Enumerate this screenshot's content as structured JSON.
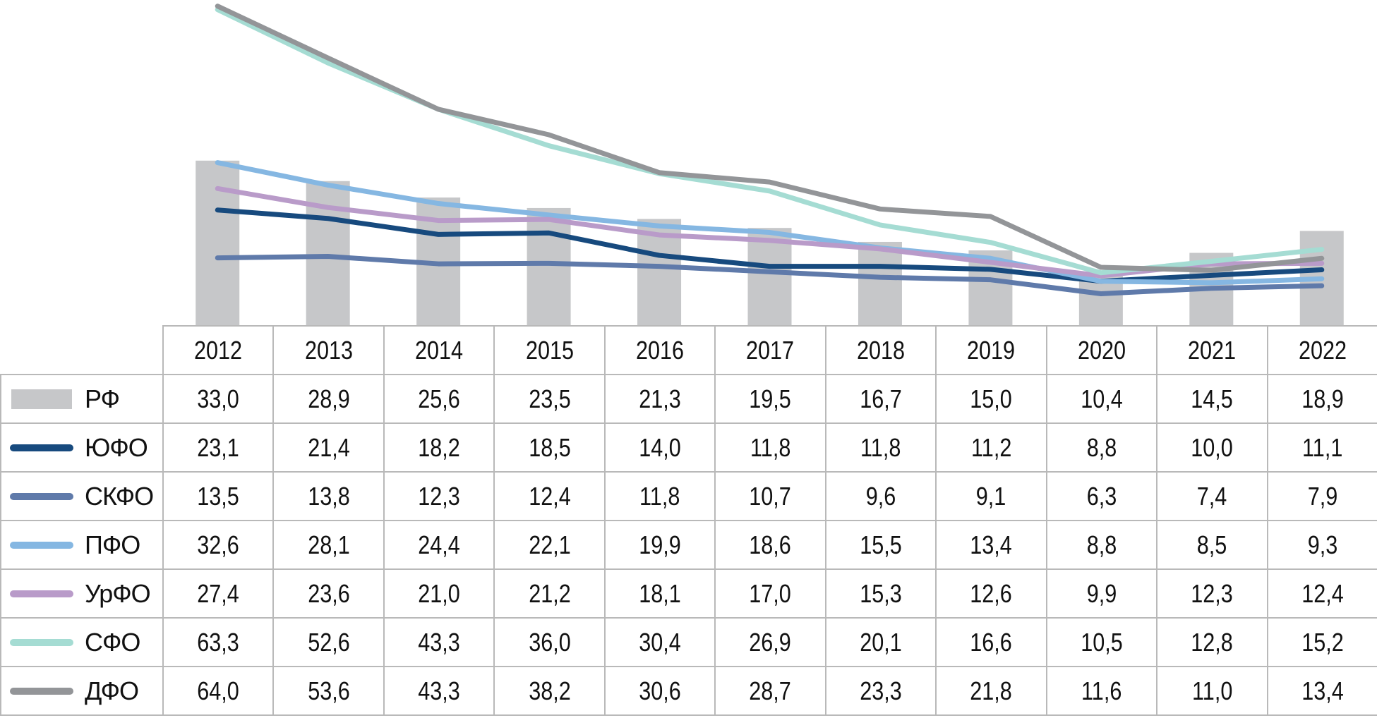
{
  "chart_data": {
    "type": "bar+line",
    "title": "",
    "xlabel": "",
    "ylabel": "",
    "ylim": [
      0,
      64.8
    ],
    "grid": false,
    "legend": "table-left",
    "categories": [
      "2012",
      "2013",
      "2014",
      "2015",
      "2016",
      "2017",
      "2018",
      "2019",
      "2020",
      "2021",
      "2022"
    ],
    "bar_series": {
      "name": "РФ",
      "color": "#c6c7c9",
      "values": [
        33.0,
        28.9,
        25.6,
        23.5,
        21.3,
        19.5,
        16.7,
        15.0,
        10.4,
        14.5,
        18.9
      ],
      "labels": [
        "33,0",
        "28,9",
        "25,6",
        "23,5",
        "21,3",
        "19,5",
        "16,7",
        "15,0",
        "10,4",
        "14,5",
        "18,9"
      ]
    },
    "line_series": [
      {
        "name": "ЮФО",
        "color": "#174a7e",
        "values": [
          23.1,
          21.4,
          18.2,
          18.5,
          14.0,
          11.8,
          11.8,
          11.2,
          8.8,
          10.0,
          11.1
        ],
        "labels": [
          "23,1",
          "21,4",
          "18,2",
          "18,5",
          "14,0",
          "11,8",
          "11,8",
          "11,2",
          "8,8",
          "10,0",
          "11,1"
        ]
      },
      {
        "name": "СКФО",
        "color": "#5f7aaa",
        "values": [
          13.5,
          13.8,
          12.3,
          12.4,
          11.8,
          10.7,
          9.6,
          9.1,
          6.3,
          7.4,
          7.9
        ],
        "labels": [
          "13,5",
          "13,8",
          "12,3",
          "12,4",
          "11,8",
          "10,7",
          "9,6",
          "9,1",
          "6,3",
          "7,4",
          "7,9"
        ]
      },
      {
        "name": "ПФО",
        "color": "#85b7e2",
        "values": [
          32.6,
          28.1,
          24.4,
          22.1,
          19.9,
          18.6,
          15.5,
          13.4,
          8.8,
          8.5,
          9.3
        ],
        "labels": [
          "32,6",
          "28,1",
          "24,4",
          "22,1",
          "19,9",
          "18,6",
          "15,5",
          "13,4",
          "8,8",
          "8,5",
          "9,3"
        ]
      },
      {
        "name": "УрФО",
        "color": "#b99bc9",
        "values": [
          27.4,
          23.6,
          21.0,
          21.2,
          18.1,
          17.0,
          15.3,
          12.6,
          9.9,
          12.3,
          12.4
        ],
        "labels": [
          "27,4",
          "23,6",
          "21,0",
          "21,2",
          "18,1",
          "17,0",
          "15,3",
          "12,6",
          "9,9",
          "12,3",
          "12,4"
        ]
      },
      {
        "name": "СФО",
        "color": "#a5dcd3",
        "values": [
          63.3,
          52.6,
          43.3,
          36.0,
          30.4,
          26.9,
          20.1,
          16.6,
          10.5,
          12.8,
          15.2
        ],
        "labels": [
          "63,3",
          "52,6",
          "43,3",
          "36,0",
          "30,4",
          "26,9",
          "20,1",
          "16,6",
          "10,5",
          "12,8",
          "15,2"
        ]
      },
      {
        "name": "ДФО",
        "color": "#939598",
        "values": [
          64.0,
          53.6,
          43.3,
          38.2,
          30.6,
          28.7,
          23.3,
          21.8,
          11.6,
          11.0,
          13.4
        ],
        "labels": [
          "64,0",
          "53,6",
          "43,3",
          "38,2",
          "30,6",
          "28,7",
          "23,3",
          "21,8",
          "11,6",
          "11,0",
          "13,4"
        ]
      }
    ]
  }
}
